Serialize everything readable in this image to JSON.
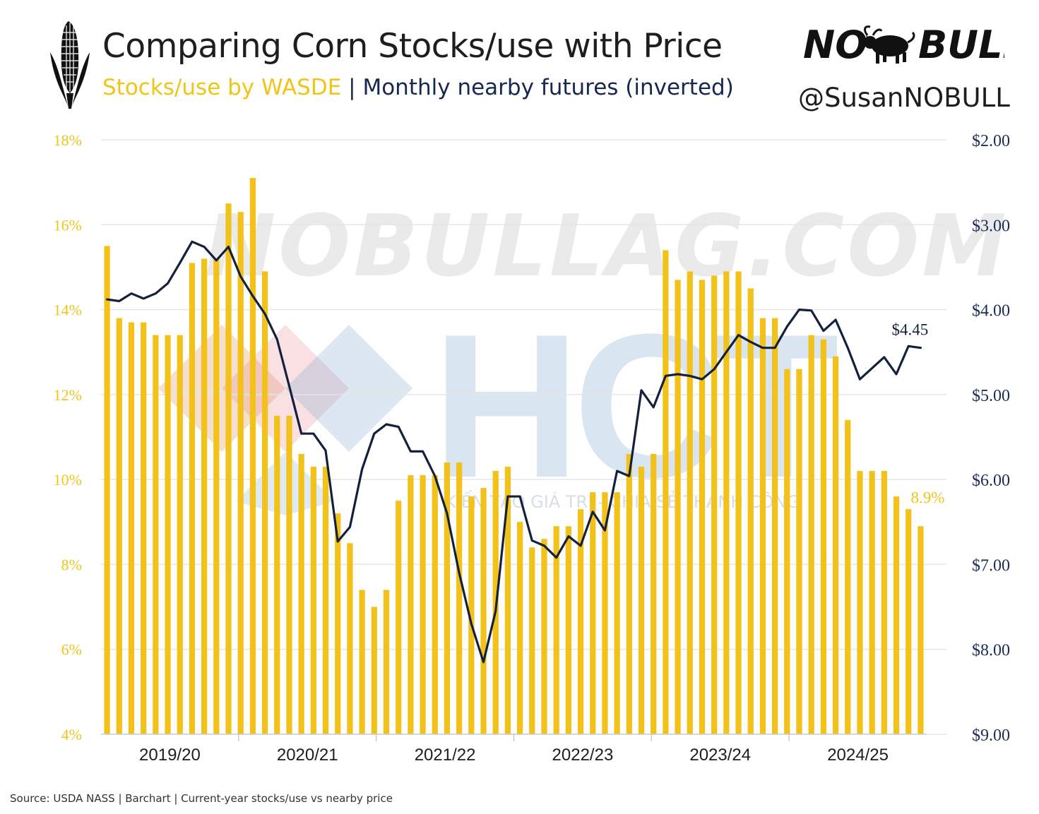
{
  "header": {
    "title": "Comparing Corn Stocks/use with Price",
    "subtitle_yellow": "Stocks/use by WASDE",
    "subtitle_separator": "|",
    "subtitle_navy": "Monthly nearby futures (inverted)",
    "brand_left": "NO",
    "brand_right": "BULL",
    "handle": "@SusanNOBULL"
  },
  "watermark": {
    "site": "NOBULLAG.COM",
    "letters": "HCT",
    "tagline": "KIẾN TẠO GIÁ TRỊ - CHIA SẺ THÀNH CÔNG"
  },
  "footer": {
    "source": "Source: USDA NASS | Barchart | Current-year stocks/use vs nearby price"
  },
  "colors": {
    "bar": "#f2c21a",
    "line": "#13213f",
    "left_axis_text": "#f0c419",
    "right_axis_text": "#1b2d55",
    "grid": "#e6e6e6"
  },
  "chart_data": {
    "type": "bar",
    "x_labels": [
      "2019/20",
      "2020/21",
      "2021/22",
      "2022/23",
      "2023/24",
      "2024/25"
    ],
    "left_axis": {
      "ticks": [
        "4%",
        "6%",
        "8%",
        "10%",
        "12%",
        "14%",
        "16%",
        "18%"
      ],
      "ylim": [
        4,
        18
      ]
    },
    "right_axis": {
      "ticks": [
        "$2.00",
        "$3.00",
        "$4.00",
        "$5.00",
        "$6.00",
        "$7.00",
        "$8.00",
        "$9.00"
      ],
      "ylim": [
        2,
        9
      ],
      "inverted": true
    },
    "series": [
      {
        "name": "Stocks/use by WASDE",
        "kind": "bar",
        "axis": "left",
        "values": [
          15.5,
          13.8,
          13.7,
          13.7,
          13.4,
          13.4,
          13.4,
          15.1,
          15.2,
          15.2,
          16.5,
          16.3,
          17.1,
          14.9,
          11.5,
          11.5,
          10.6,
          10.3,
          10.3,
          9.2,
          8.5,
          7.4,
          7.0,
          7.4,
          9.5,
          10.1,
          10.1,
          10.1,
          10.4,
          10.4,
          9.6,
          9.8,
          10.2,
          10.3,
          9.0,
          8.4,
          8.6,
          8.9,
          8.9,
          9.3,
          9.7,
          9.7,
          9.7,
          10.6,
          10.3,
          10.6,
          15.4,
          14.7,
          14.9,
          14.7,
          14.8,
          14.9,
          14.9,
          14.5,
          13.8,
          13.8,
          12.6,
          12.6,
          13.4,
          13.3,
          12.9,
          11.4,
          10.2,
          10.2,
          10.2,
          9.6,
          9.3,
          8.9
        ]
      },
      {
        "name": "Monthly nearby futures (inverted)",
        "kind": "line",
        "axis": "right",
        "values": [
          3.88,
          3.9,
          3.81,
          3.87,
          3.81,
          3.69,
          3.45,
          3.2,
          3.26,
          3.42,
          3.26,
          3.61,
          3.84,
          4.05,
          4.35,
          4.9,
          5.46,
          5.46,
          5.66,
          6.73,
          6.56,
          5.88,
          5.46,
          5.35,
          5.38,
          5.67,
          5.67,
          5.96,
          6.4,
          7.1,
          7.7,
          8.15,
          7.55,
          6.2,
          6.2,
          6.72,
          6.78,
          6.92,
          6.67,
          6.78,
          6.38,
          6.6,
          5.9,
          5.96,
          4.95,
          5.15,
          4.78,
          4.76,
          4.78,
          4.82,
          4.7,
          4.5,
          4.3,
          4.38,
          4.45,
          4.45,
          4.2,
          4.0,
          4.01,
          4.25,
          4.12,
          4.45,
          4.82,
          4.69,
          4.56,
          4.76,
          4.43,
          4.45
        ]
      }
    ],
    "annotations": [
      {
        "text": "$4.45",
        "series": "Monthly nearby futures (inverted)"
      },
      {
        "text": "8.9%",
        "series": "Stocks/use by WASDE"
      }
    ]
  }
}
